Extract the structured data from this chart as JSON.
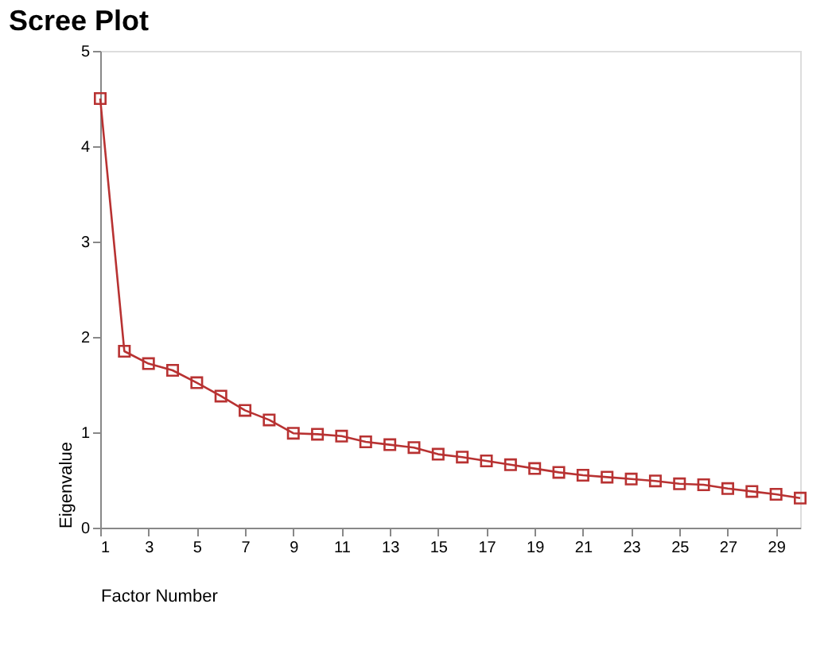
{
  "chart_data": {
    "type": "line",
    "title": "Scree Plot",
    "xlabel": "Factor Number",
    "ylabel": "Eigenvalue",
    "x": [
      1,
      2,
      3,
      4,
      5,
      6,
      7,
      8,
      9,
      10,
      11,
      12,
      13,
      14,
      15,
      16,
      17,
      18,
      19,
      20,
      21,
      22,
      23,
      24,
      25,
      26,
      27,
      28,
      29,
      30
    ],
    "series": [
      {
        "color": "#b83232",
        "values": [
          4.5,
          1.85,
          1.72,
          1.65,
          1.52,
          1.38,
          1.23,
          1.13,
          0.99,
          0.98,
          0.96,
          0.9,
          0.87,
          0.84,
          0.77,
          0.74,
          0.7,
          0.66,
          0.62,
          0.58,
          0.55,
          0.53,
          0.51,
          0.49,
          0.46,
          0.45,
          0.41,
          0.38,
          0.35,
          0.31
        ]
      }
    ],
    "xlim": [
      1,
      30
    ],
    "xticks": [
      1,
      3,
      5,
      7,
      9,
      11,
      13,
      15,
      17,
      19,
      21,
      23,
      25,
      27,
      29
    ],
    "ylim": [
      0,
      5
    ],
    "yticks": [
      0,
      1,
      2,
      3,
      4,
      5
    ],
    "marker": "square",
    "grid": false,
    "legend": false
  }
}
